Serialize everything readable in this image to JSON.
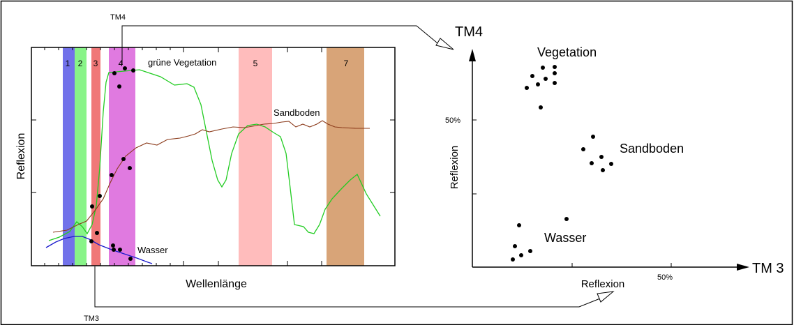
{
  "labels": {
    "tm4_top": "TM4",
    "tm3_bottom": "TM3",
    "spectrum_ylabel": "Reflexion",
    "spectrum_xlabel": "Wellenlänge",
    "gruene_vegetation": "grüne Vegetation",
    "sandboden_curve": "Sandboden",
    "wasser_curve": "Wasser",
    "scatter_y_axis": "TM4",
    "scatter_x_axis": "TM 3",
    "scatter_ylabel": "Reflexion",
    "scatter_xlabel": "Reflexion",
    "y_50": "50%",
    "x_50": "50%",
    "cluster_vegetation": "Vegetation",
    "cluster_sandboden": "Sandboden",
    "cluster_wasser": "Wasser"
  },
  "bands": [
    {
      "label": "1",
      "color": "#7272ea"
    },
    {
      "label": "2",
      "color": "#88f488"
    },
    {
      "label": "3",
      "color": "#f07878"
    },
    {
      "label": "4",
      "color": "#e07ae0"
    },
    {
      "label": "5",
      "color": "#ffbcbc"
    },
    {
      "label": "7",
      "color": "#d8a478"
    }
  ],
  "colors": {
    "vegetation_curve": "#22cc22",
    "soil_curve": "#8b3a1a",
    "water_curve": "#1a1acc"
  }
}
